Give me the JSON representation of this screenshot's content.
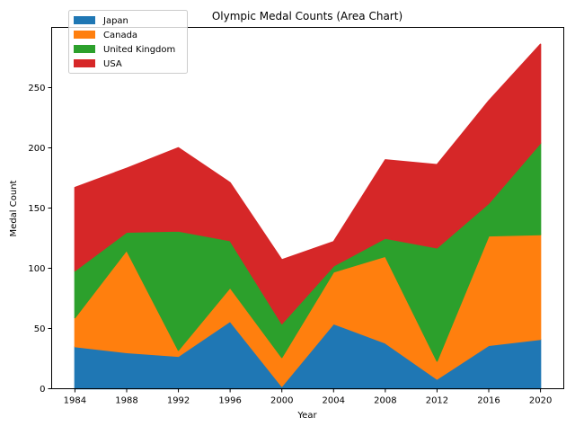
{
  "chart_data": {
    "type": "area",
    "stacked": true,
    "title": "Olympic Medal Counts (Area Chart)",
    "xlabel": "Year",
    "ylabel": "Medal Count",
    "x": [
      1984,
      1988,
      1992,
      1996,
      2000,
      2004,
      2008,
      2012,
      2016,
      2020
    ],
    "xticks": [
      "1984",
      "1988",
      "1992",
      "1996",
      "2000",
      "2004",
      "2008",
      "2012",
      "2016",
      "2020"
    ],
    "yticks": [
      "0",
      "50",
      "100",
      "150",
      "200",
      "250"
    ],
    "ylim": [
      0,
      300
    ],
    "grid": false,
    "legend_position": "top-left",
    "series": [
      {
        "name": "Japan",
        "color": "#1f77b4",
        "values": [
          35,
          30,
          27,
          56,
          2,
          54,
          38,
          8,
          36,
          41
        ]
      },
      {
        "name": "Canada",
        "color": "#ff7f0e",
        "values": [
          24,
          85,
          5,
          28,
          24,
          43,
          72,
          15,
          91,
          87
        ]
      },
      {
        "name": "United Kingdom",
        "color": "#2ca02c",
        "values": [
          39,
          15,
          99,
          39,
          28,
          5,
          15,
          94,
          27,
          76
        ]
      },
      {
        "name": "USA",
        "color": "#d62728",
        "values": [
          69,
          53,
          69,
          48,
          53,
          20,
          65,
          69,
          85,
          82
        ]
      }
    ]
  }
}
